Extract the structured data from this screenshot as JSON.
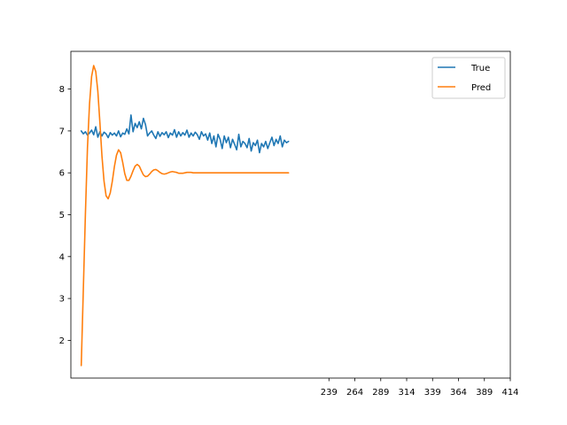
{
  "chart_data": {
    "type": "line",
    "title": "",
    "xlabel": "",
    "ylabel": "",
    "xlim": [
      -10,
      414
    ],
    "ylim": [
      1.1,
      8.9
    ],
    "x_ticks": [
      239,
      264,
      289,
      314,
      339,
      364,
      389,
      414
    ],
    "y_ticks": [
      2,
      3,
      4,
      5,
      6,
      7,
      8
    ],
    "grid": false,
    "legend": "top-right",
    "series": [
      {
        "name": "True",
        "color": "#1f77b4",
        "x": [
          0,
          2,
          4,
          6,
          8,
          10,
          12,
          14,
          16,
          18,
          20,
          22,
          24,
          26,
          28,
          30,
          32,
          34,
          36,
          38,
          40,
          42,
          44,
          46,
          48,
          50,
          52,
          54,
          56,
          58,
          60,
          62,
          64,
          66,
          68,
          70,
          72,
          74,
          76,
          78,
          80,
          82,
          84,
          86,
          88,
          90,
          92,
          94,
          96,
          98,
          100,
          102,
          104,
          106,
          108,
          110,
          112,
          114,
          116,
          118,
          120,
          122,
          124,
          126,
          128,
          130,
          132,
          134,
          136,
          138,
          140,
          142,
          144,
          146,
          148,
          150,
          152,
          154,
          156,
          158,
          160,
          162,
          164,
          166,
          168,
          170,
          172,
          174,
          176,
          178,
          180,
          182,
          184,
          186,
          188,
          190,
          192,
          194,
          196,
          198,
          200
        ],
        "y": [
          7.0,
          6.93,
          6.98,
          6.9,
          6.95,
          7.02,
          6.91,
          7.1,
          6.85,
          6.98,
          6.88,
          6.97,
          6.93,
          6.84,
          6.96,
          6.9,
          6.95,
          6.88,
          7.0,
          6.86,
          6.95,
          6.92,
          7.05,
          6.93,
          7.38,
          6.98,
          7.18,
          7.08,
          7.22,
          7.05,
          7.3,
          7.15,
          6.88,
          6.95,
          7.0,
          6.9,
          6.82,
          6.98,
          6.87,
          6.96,
          6.91,
          6.98,
          6.84,
          6.95,
          6.9,
          7.03,
          6.85,
          6.98,
          6.88,
          6.96,
          6.9,
          7.02,
          6.85,
          6.95,
          6.88,
          6.97,
          6.91,
          6.8,
          6.98,
          6.88,
          6.93,
          6.78,
          6.95,
          6.7,
          6.88,
          6.62,
          6.92,
          6.8,
          6.58,
          6.88,
          6.72,
          6.85,
          6.6,
          6.8,
          6.68,
          6.55,
          6.92,
          6.62,
          6.75,
          6.7,
          6.6,
          6.82,
          6.52,
          6.72,
          6.65,
          6.78,
          6.48,
          6.7,
          6.62,
          6.75,
          6.58,
          6.72,
          6.85,
          6.65,
          6.8,
          6.7,
          6.88,
          6.62,
          6.78,
          6.72,
          6.75
        ]
      },
      {
        "name": "Pred",
        "color": "#ff7f0e",
        "x": [
          0,
          2,
          4,
          6,
          8,
          10,
          12,
          14,
          16,
          18,
          20,
          22,
          24,
          26,
          28,
          30,
          32,
          34,
          36,
          38,
          40,
          42,
          44,
          46,
          48,
          50,
          52,
          54,
          56,
          58,
          60,
          62,
          64,
          66,
          68,
          70,
          72,
          74,
          76,
          78,
          80,
          82,
          84,
          86,
          88,
          90,
          92,
          94,
          96,
          98,
          100,
          102,
          104,
          106,
          108,
          110,
          112,
          114,
          116,
          118,
          120,
          122,
          124,
          126,
          128,
          130,
          132,
          134,
          136,
          138,
          140,
          142,
          144,
          146,
          148,
          150,
          152,
          154,
          156,
          158,
          160,
          162,
          164,
          166,
          168,
          170,
          172,
          174,
          176,
          178,
          180,
          182,
          184,
          186,
          188,
          190,
          192,
          194,
          196,
          198,
          200
        ],
        "y": [
          1.4,
          3.2,
          5.0,
          6.6,
          7.65,
          8.3,
          8.56,
          8.42,
          7.95,
          7.2,
          6.4,
          5.8,
          5.45,
          5.38,
          5.52,
          5.8,
          6.15,
          6.42,
          6.55,
          6.48,
          6.25,
          5.98,
          5.82,
          5.82,
          5.92,
          6.05,
          6.16,
          6.2,
          6.16,
          6.05,
          5.95,
          5.91,
          5.92,
          5.97,
          6.03,
          6.07,
          6.08,
          6.05,
          6.01,
          5.98,
          5.97,
          5.98,
          6.0,
          6.02,
          6.03,
          6.02,
          6.01,
          5.99,
          5.99,
          5.99,
          6.0,
          6.01,
          6.01,
          6.01,
          6.0,
          6.0,
          6.0,
          6.0,
          6.0,
          6.0,
          6.0,
          6.0,
          6.0,
          6.0,
          6.0,
          6.0,
          6.0,
          6.0,
          6.0,
          6.0,
          6.0,
          6.0,
          6.0,
          6.0,
          6.0,
          6.0,
          6.0,
          6.0,
          6.0,
          6.0,
          6.0,
          6.0,
          6.0,
          6.0,
          6.0,
          6.0,
          6.0,
          6.0,
          6.0,
          6.0,
          6.0,
          6.0,
          6.0,
          6.0,
          6.0,
          6.0,
          6.0,
          6.0,
          6.0,
          6.0,
          6.0
        ]
      }
    ]
  }
}
